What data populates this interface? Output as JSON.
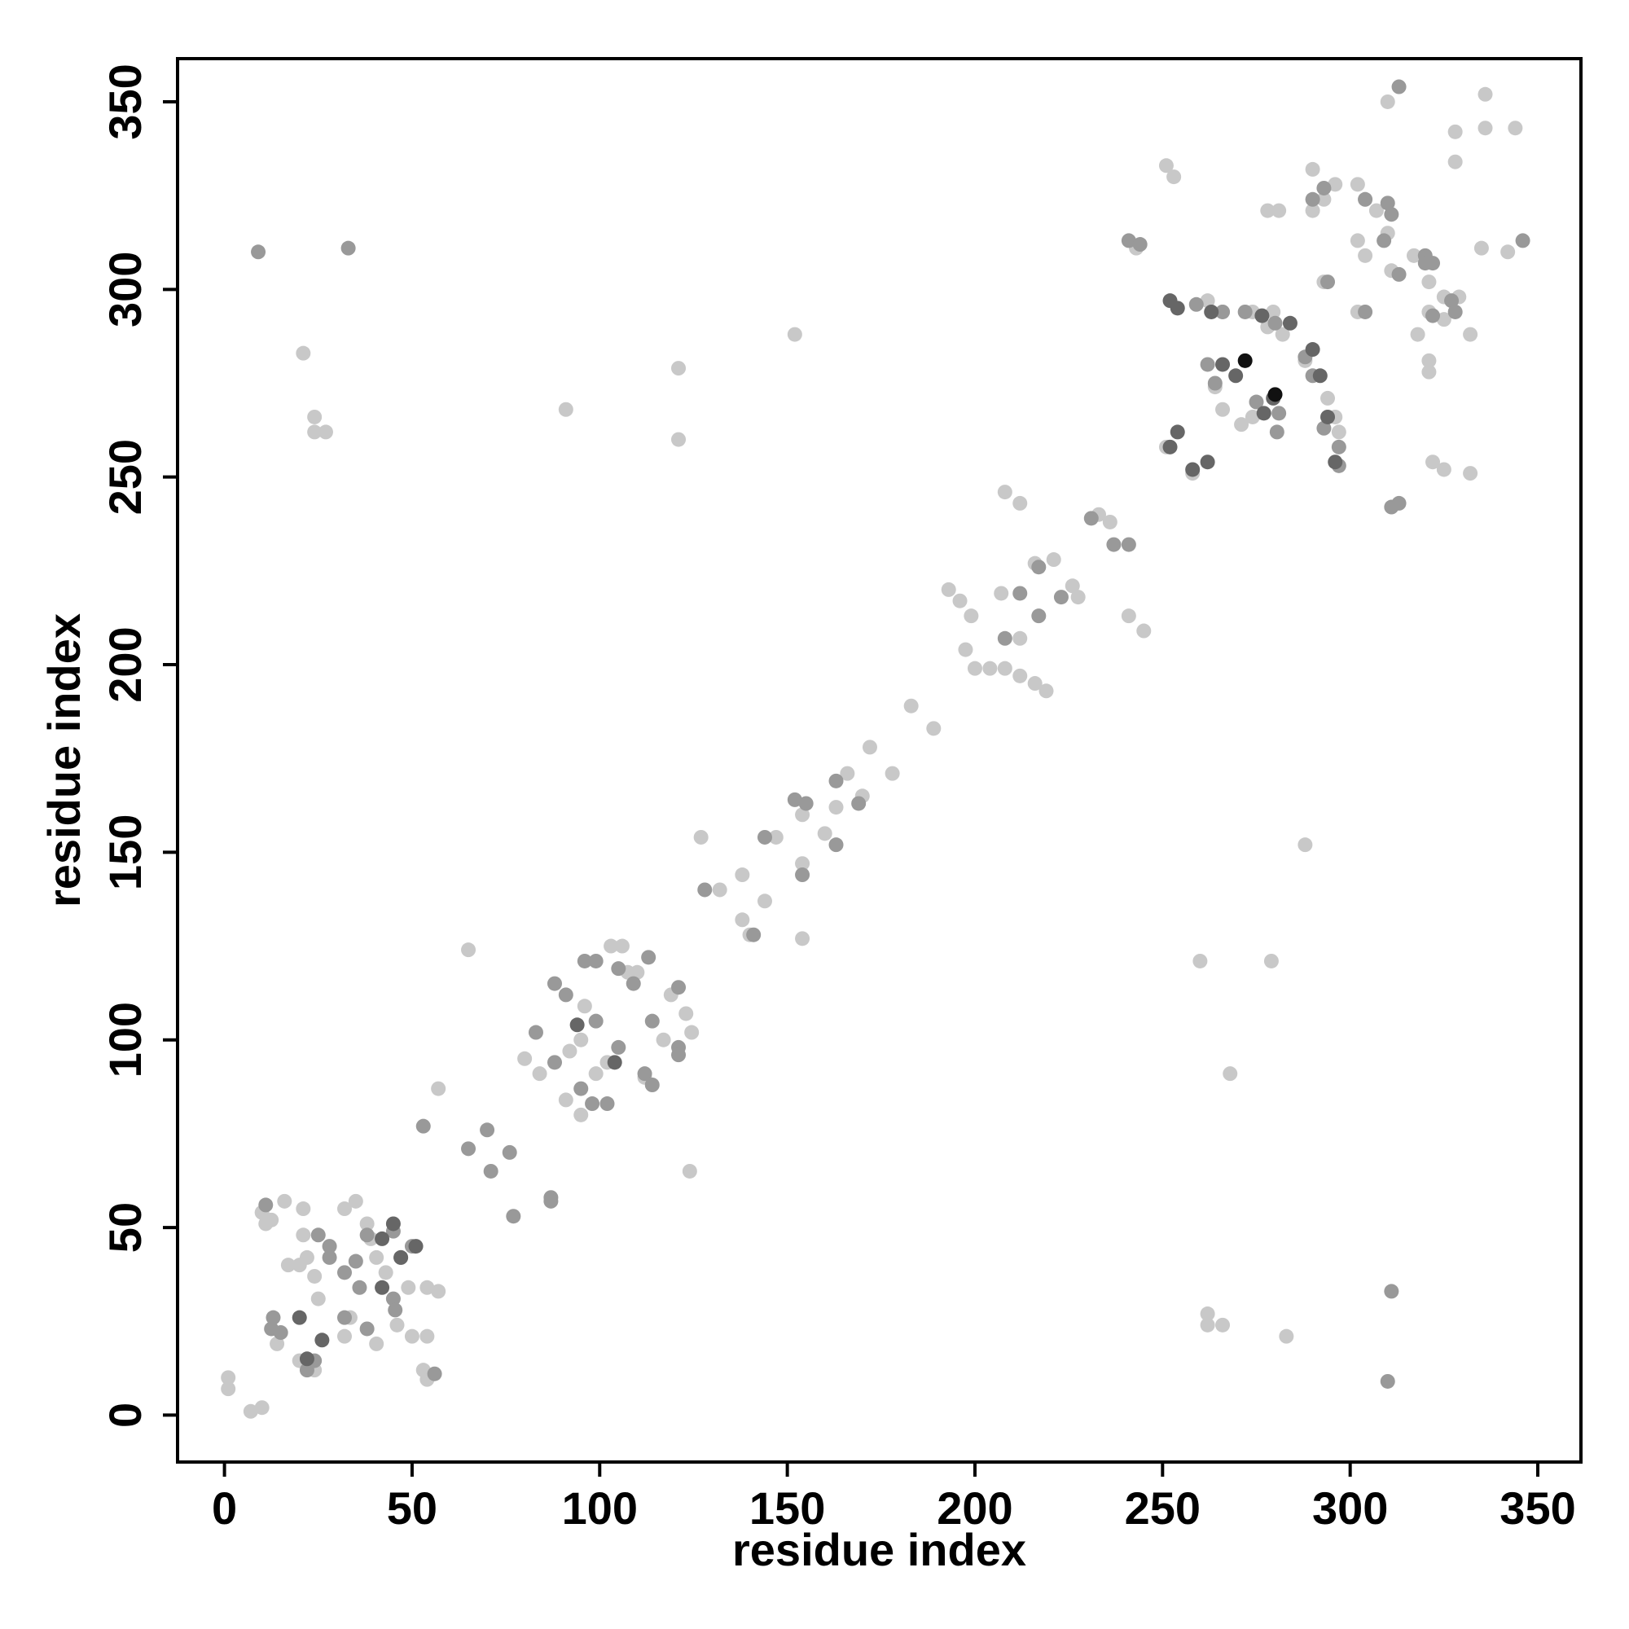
{
  "chart_data": {
    "type": "scatter",
    "xlabel": "residue index",
    "ylabel": "residue index",
    "xlim": [
      -12.5,
      361.5
    ],
    "ylim": [
      -12.5,
      361.5
    ],
    "xticks": [
      0,
      50,
      100,
      150,
      200,
      250,
      300,
      350
    ],
    "yticks": [
      0,
      50,
      100,
      150,
      200,
      250,
      300,
      350
    ],
    "grid": false,
    "series": [
      {
        "color": "#c8c8c8",
        "x": [
          1,
          1,
          7,
          10,
          21,
          24,
          24,
          27,
          91,
          121,
          121,
          152,
          183,
          189,
          288,
          260,
          279,
          268,
          262,
          262,
          266,
          283,
          65,
          124,
          57,
          10,
          11,
          12.5,
          16,
          21,
          21,
          22,
          24,
          25,
          17,
          20,
          35,
          32,
          38,
          39,
          40.5,
          43,
          49,
          54,
          57,
          46,
          50,
          54,
          53,
          54,
          33.5,
          32,
          40.5,
          14,
          20,
          24,
          80,
          84,
          91,
          95,
          92,
          95,
          99,
          102,
          96,
          103,
          106,
          110,
          119,
          123,
          124.5,
          107.5,
          112,
          117,
          127,
          132,
          138,
          140,
          138,
          144,
          147,
          154,
          154,
          154,
          160,
          163,
          166,
          172,
          178,
          170,
          193,
          196,
          199,
          197.5,
          200,
          204,
          208,
          212,
          216,
          219,
          216,
          221,
          226,
          227.5,
          208,
          212,
          233,
          236,
          241,
          245,
          207,
          212,
          243,
          251,
          253,
          262,
          266,
          274,
          279.5,
          278,
          282,
          264,
          266,
          271,
          274,
          288,
          294,
          296,
          297,
          278,
          281,
          251,
          258,
          290,
          290,
          293,
          296,
          302,
          304,
          307,
          310,
          302,
          293,
          302,
          311,
          317,
          321,
          325,
          321,
          318,
          325,
          329,
          321,
          321,
          310,
          328,
          328,
          336,
          336,
          344,
          335,
          342,
          322,
          325,
          332,
          332,
          304
        ],
        "values": [
          10,
          7,
          1,
          2,
          283,
          266,
          262,
          262,
          268,
          279,
          260,
          288,
          189,
          183,
          152,
          121,
          121,
          91,
          27,
          24,
          24,
          21,
          124,
          65,
          87,
          54,
          51,
          52,
          57,
          55,
          48,
          42,
          37,
          31,
          40,
          40,
          57,
          55,
          51,
          47,
          42,
          38,
          34,
          34,
          33,
          24,
          21,
          21,
          12,
          9.5,
          26,
          21,
          19,
          19,
          14.5,
          12,
          95,
          91,
          84,
          80,
          97,
          100,
          91,
          94,
          109,
          125,
          125,
          118,
          112,
          107,
          102,
          118,
          90,
          100,
          154,
          140,
          132,
          128,
          144,
          137,
          154,
          147,
          127,
          160,
          155,
          162,
          171,
          178,
          171,
          165,
          220,
          217,
          213,
          204,
          199,
          199,
          199,
          197,
          195,
          193,
          227,
          228,
          221,
          218,
          246,
          243,
          240,
          238,
          213,
          209,
          219,
          207,
          311,
          333,
          330,
          297,
          294,
          294,
          294,
          290,
          288,
          274,
          268,
          264,
          266,
          281,
          271,
          266,
          262,
          321,
          321,
          258,
          251,
          332,
          321,
          324,
          328,
          328,
          324,
          321,
          315,
          313,
          302,
          294,
          305,
          309,
          302,
          298,
          294,
          288,
          292,
          298,
          281,
          278,
          350,
          342,
          334,
          352,
          343,
          343,
          311,
          310,
          254,
          252,
          288,
          251,
          309
        ]
      },
      {
        "color": "#999999",
        "x": [
          9,
          33,
          311,
          310,
          53,
          65,
          70,
          71,
          76,
          77,
          87,
          87,
          11,
          13,
          12.5,
          15,
          22,
          28,
          25,
          28,
          32,
          35,
          36,
          38,
          45,
          47,
          50,
          45,
          38,
          32,
          56,
          45.5,
          24,
          83,
          88,
          91,
          96,
          99,
          88,
          95,
          98,
          102,
          99,
          105,
          109,
          113,
          114,
          121,
          121,
          121,
          112,
          114,
          105,
          128,
          141,
          144,
          154,
          152,
          155,
          163,
          163,
          169,
          208,
          212,
          217,
          217,
          223,
          231,
          237,
          241,
          241,
          244,
          259,
          266,
          272,
          280,
          281,
          280.5,
          288,
          290,
          293,
          297,
          297,
          262,
          264,
          275,
          290,
          293,
          304,
          311,
          310,
          313,
          304,
          294,
          309,
          320,
          322,
          327,
          322,
          328,
          313,
          346,
          311,
          313,
          320
        ],
        "values": [
          310,
          311,
          33,
          9,
          77,
          71,
          76,
          65,
          70,
          53,
          58,
          57,
          56,
          26,
          23,
          22,
          12,
          45,
          48,
          42,
          38,
          41,
          34,
          48,
          31,
          42,
          45,
          49,
          23,
          26,
          11,
          28,
          14.5,
          102,
          115,
          112,
          121,
          121,
          94,
          87,
          83,
          83,
          105,
          98,
          115,
          122,
          105,
          114,
          98,
          96,
          91,
          88,
          119,
          140,
          128,
          154,
          144,
          164,
          163,
          152,
          169,
          163,
          207,
          219,
          213,
          226,
          218,
          239,
          232,
          232,
          313,
          312,
          296,
          294,
          294,
          291,
          267,
          262,
          282,
          277,
          263,
          258,
          253,
          280,
          275,
          270,
          324,
          327,
          324,
          320,
          323,
          304,
          294,
          302,
          313,
          309,
          307,
          297,
          293,
          294,
          354,
          313,
          242,
          243,
          307
        ]
      },
      {
        "color": "#666666",
        "x": [
          20,
          26,
          45,
          42,
          42,
          47,
          51,
          22,
          94,
          104,
          252,
          254,
          263,
          266,
          269.5,
          276.5,
          279.5,
          277,
          290,
          292,
          294,
          296,
          252,
          254,
          258,
          262,
          284
        ],
        "values": [
          26,
          20,
          51,
          47,
          34,
          42,
          45,
          15,
          104,
          94,
          297,
          295,
          294,
          280,
          277,
          293,
          271,
          267,
          284,
          277,
          266,
          254,
          258,
          262,
          252,
          254,
          291
        ]
      },
      {
        "color": "#111111",
        "x": [
          272,
          280
        ],
        "values": [
          281,
          272
        ]
      }
    ]
  }
}
